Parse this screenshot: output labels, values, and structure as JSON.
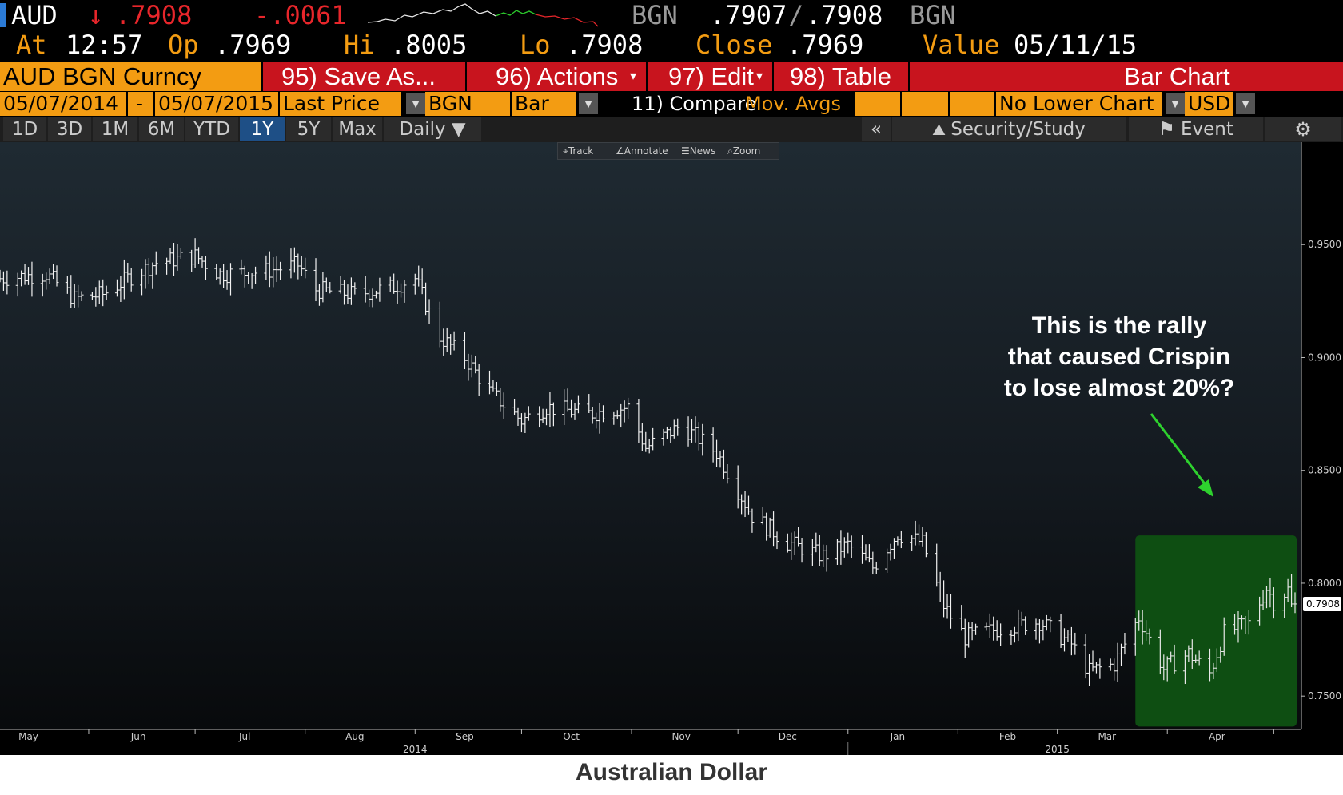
{
  "quote": {
    "ticker": "AUD",
    "arrow": "↓",
    "last": ".7908",
    "change": "-.0061",
    "source1": "BGN",
    "bid": ".7907",
    "slash": "/",
    "ask": ".7908",
    "source2": "BGN",
    "at_label": "At",
    "at_value": "12:57",
    "op_label": "Op",
    "op_value": ".7969",
    "hi_label": "Hi",
    "hi_value": ".8005",
    "lo_label": "Lo",
    "lo_value": ".7908",
    "close_label": "Close",
    "close_value": ".7969",
    "value_label": "Value",
    "value_date": "05/11/15"
  },
  "menu": {
    "security": "AUD BGN Curncy",
    "save": "95) Save As...",
    "actions": "96) Actions",
    "edit": "97) Edit",
    "table": "98) Table",
    "mode": "Bar Chart"
  },
  "fields": {
    "start_date": "05/07/2014",
    "dash": "-",
    "end_date": "05/07/2015",
    "price_field": "Last Price",
    "source": "BGN",
    "chart_type": "Bar",
    "compare": "11) Compare",
    "mov_avgs": "Mov. Avgs",
    "lower_chart": "No Lower Chart",
    "currency": "USD"
  },
  "periods": [
    "1D",
    "3D",
    "1M",
    "6M",
    "YTD",
    "1Y",
    "5Y",
    "Max"
  ],
  "selected_period": "1Y",
  "frequency": "Daily ▼",
  "panel": {
    "collapse": "«",
    "security_study": "Security/Study",
    "event": "Event"
  },
  "tools": {
    "track": "Track",
    "annotate": "Annotate",
    "news": "News",
    "zoom": "Zoom"
  },
  "annotation": {
    "lines": [
      "This is the rally",
      "that caused Crispin",
      "to lose almost 20%?"
    ]
  },
  "caption": "Australian Dollar",
  "colors": {
    "orange": "#f39c12",
    "red": "#e8262b",
    "highlight_green": "#0e4e12",
    "arrow_green": "#2ed12e",
    "selected_tab": "#1e4f86"
  },
  "chart_data": {
    "type": "bar",
    "ohlc_style": "high-low bars",
    "x_range": [
      "2014-05-07",
      "2015-05-07"
    ],
    "y_range": [
      0.7352,
      0.9954
    ],
    "y_ticks": [
      "0.9500",
      "0.9000",
      "0.8500",
      "0.8000",
      "0.7500"
    ],
    "last_price_label": "0.7908",
    "month_labels": [
      "May",
      "Jun",
      "Jul",
      "Aug",
      "Sep",
      "Oct",
      "Nov",
      "Dec",
      "Jan",
      "Feb",
      "Mar",
      "Apr"
    ],
    "year_labels": [
      "2014",
      "2015"
    ],
    "highlight": {
      "from": "2015-03-23",
      "to": "2015-05-07"
    },
    "anchors": [
      {
        "date": "2014-05-07",
        "close": 0.935
      },
      {
        "date": "2014-05-20",
        "close": 0.937
      },
      {
        "date": "2014-05-28",
        "close": 0.926
      },
      {
        "date": "2014-06-05",
        "close": 0.928
      },
      {
        "date": "2014-06-12",
        "close": 0.935
      },
      {
        "date": "2014-06-20",
        "close": 0.942
      },
      {
        "date": "2014-07-01",
        "close": 0.945
      },
      {
        "date": "2014-07-08",
        "close": 0.937
      },
      {
        "date": "2014-07-20",
        "close": 0.938
      },
      {
        "date": "2014-07-30",
        "close": 0.941
      },
      {
        "date": "2014-08-04",
        "close": 0.93
      },
      {
        "date": "2014-08-15",
        "close": 0.928
      },
      {
        "date": "2014-08-25",
        "close": 0.931
      },
      {
        "date": "2014-09-01",
        "close": 0.935
      },
      {
        "date": "2014-09-08",
        "close": 0.909
      },
      {
        "date": "2014-09-15",
        "close": 0.9
      },
      {
        "date": "2014-09-22",
        "close": 0.885
      },
      {
        "date": "2014-10-01",
        "close": 0.872
      },
      {
        "date": "2014-10-08",
        "close": 0.878
      },
      {
        "date": "2014-10-20",
        "close": 0.875
      },
      {
        "date": "2014-10-31",
        "close": 0.878
      },
      {
        "date": "2014-11-05",
        "close": 0.86
      },
      {
        "date": "2014-11-15",
        "close": 0.87
      },
      {
        "date": "2014-11-25",
        "close": 0.858
      },
      {
        "date": "2014-12-05",
        "close": 0.83
      },
      {
        "date": "2014-12-15",
        "close": 0.818
      },
      {
        "date": "2014-12-25",
        "close": 0.812
      },
      {
        "date": "2015-01-01",
        "close": 0.817
      },
      {
        "date": "2015-01-08",
        "close": 0.807
      },
      {
        "date": "2015-01-15",
        "close": 0.822
      },
      {
        "date": "2015-01-22",
        "close": 0.818
      },
      {
        "date": "2015-01-28",
        "close": 0.79
      },
      {
        "date": "2015-02-03",
        "close": 0.776
      },
      {
        "date": "2015-02-13",
        "close": 0.78
      },
      {
        "date": "2015-02-24",
        "close": 0.783
      },
      {
        "date": "2015-03-05",
        "close": 0.773
      },
      {
        "date": "2015-03-10",
        "close": 0.761
      },
      {
        "date": "2015-03-17",
        "close": 0.764
      },
      {
        "date": "2015-03-24",
        "close": 0.785
      },
      {
        "date": "2015-03-31",
        "close": 0.762
      },
      {
        "date": "2015-04-07",
        "close": 0.769
      },
      {
        "date": "2015-04-13",
        "close": 0.76
      },
      {
        "date": "2015-04-17",
        "close": 0.778
      },
      {
        "date": "2015-04-24",
        "close": 0.782
      },
      {
        "date": "2015-04-29",
        "close": 0.798
      },
      {
        "date": "2015-05-01",
        "close": 0.792
      },
      {
        "date": "2015-05-05",
        "close": 0.797
      },
      {
        "date": "2015-05-07",
        "close": 0.7908
      }
    ]
  }
}
